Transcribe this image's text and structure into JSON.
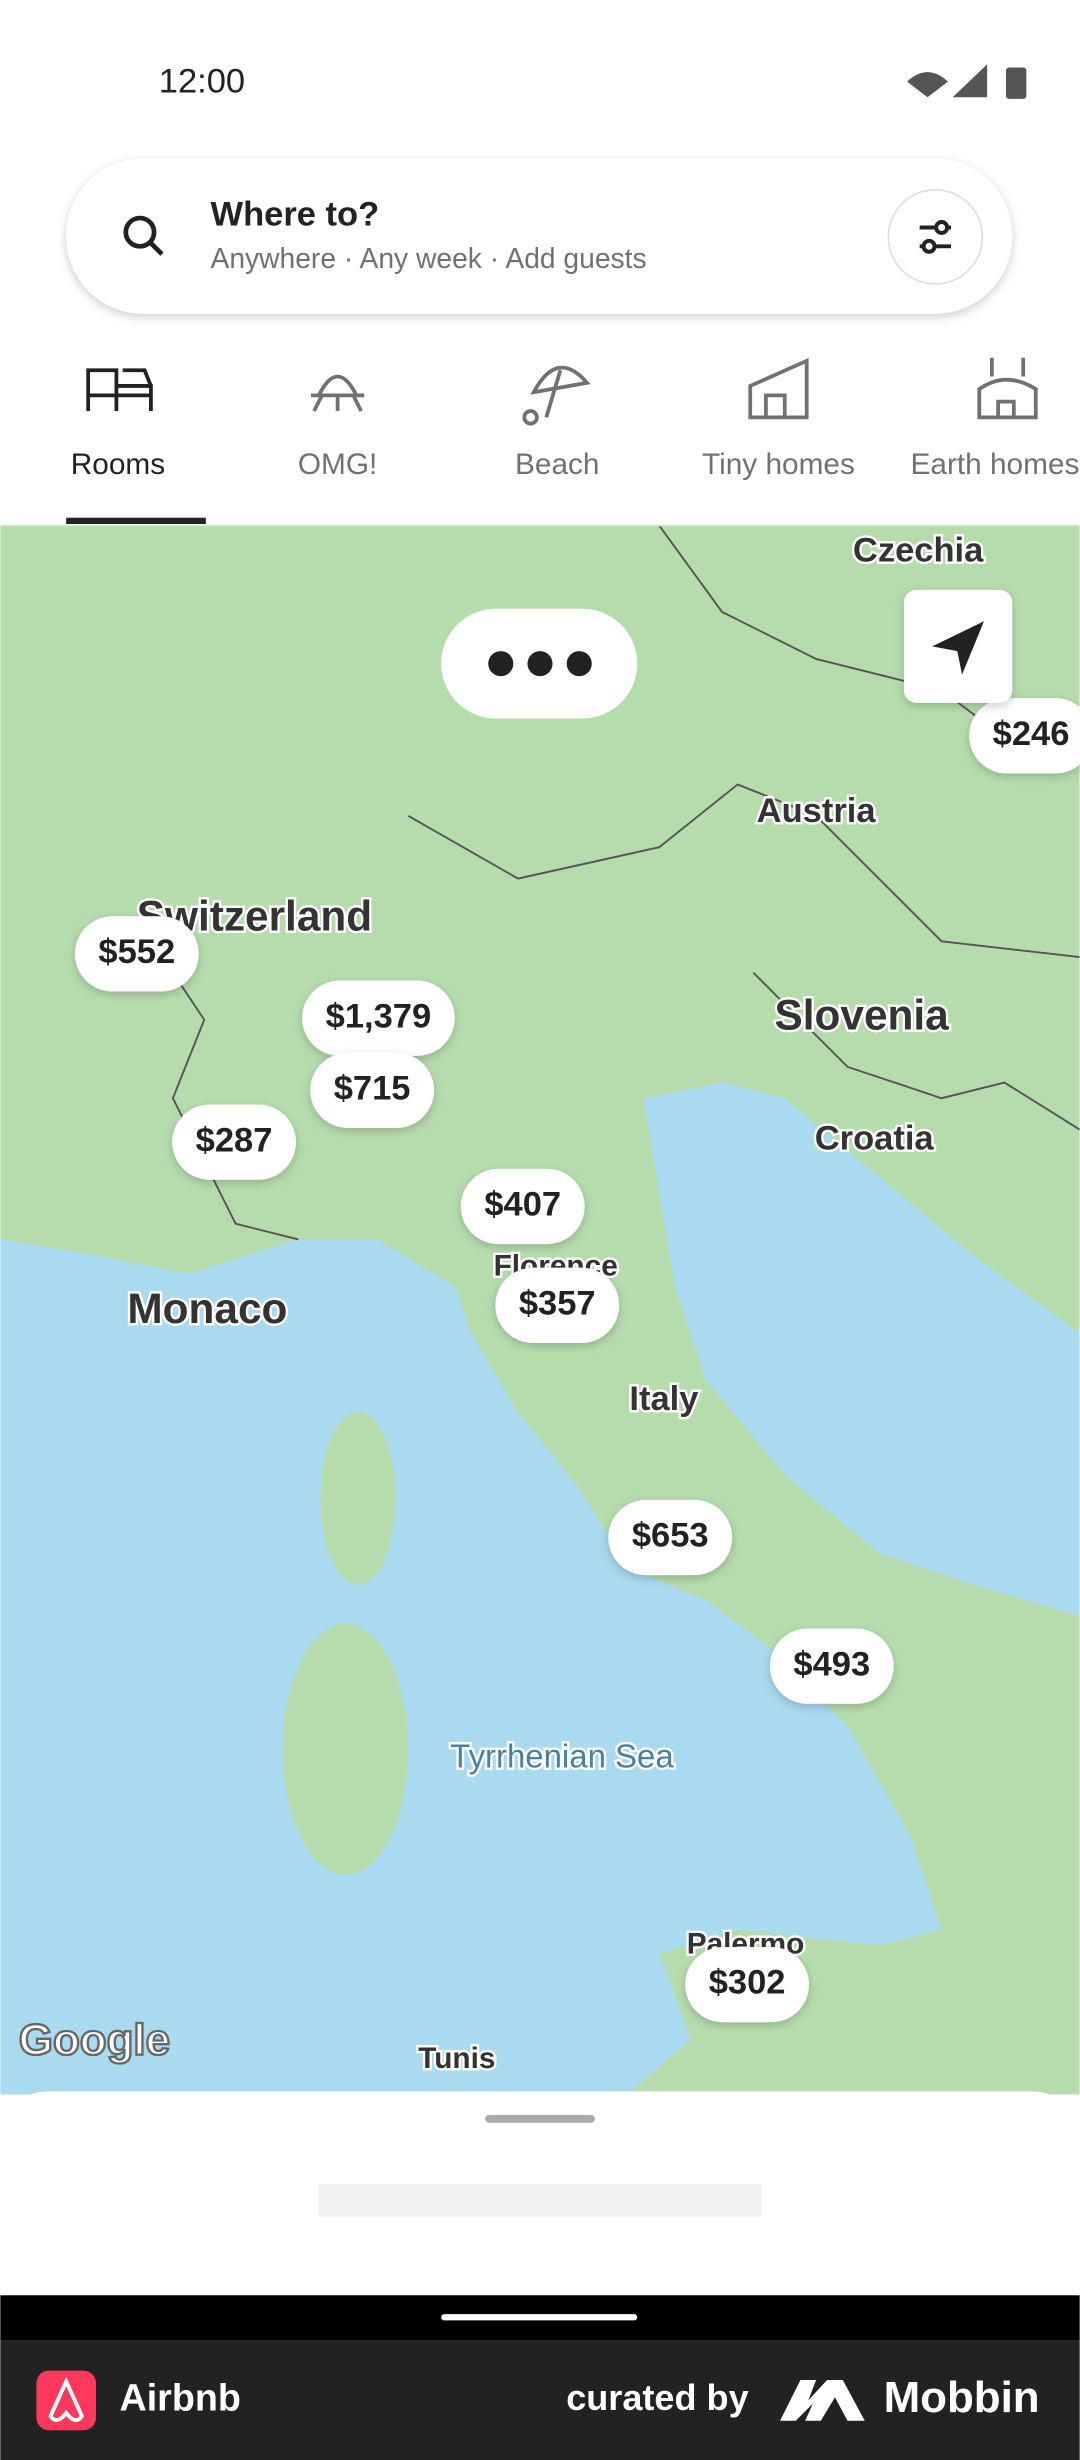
{
  "status_bar": {
    "time": "12:00"
  },
  "search": {
    "title": "Where to?",
    "subtitle": "Anywhere · Any week · Add guests"
  },
  "categories": [
    {
      "label": "Rooms"
    },
    {
      "label": "OMG!"
    },
    {
      "label": "Beach"
    },
    {
      "label": "Tiny homes"
    },
    {
      "label": "Earth homes"
    }
  ],
  "map": {
    "places": [
      "Czechia",
      "Austria",
      "Switzerland",
      "Slovenia",
      "Croatia",
      "Monaco",
      "Italy",
      "Tyrrhenian Sea",
      "Florence",
      "Palermo",
      "Tunis"
    ],
    "prices": [
      "$246",
      "$552",
      "$1,379",
      "$715",
      "$287",
      "$407",
      "$357",
      "$653",
      "$493",
      "$302"
    ],
    "attribution": "Google"
  },
  "footer": {
    "app": "Airbnb",
    "curated_by": "curated by",
    "brand": "Mobbin"
  }
}
